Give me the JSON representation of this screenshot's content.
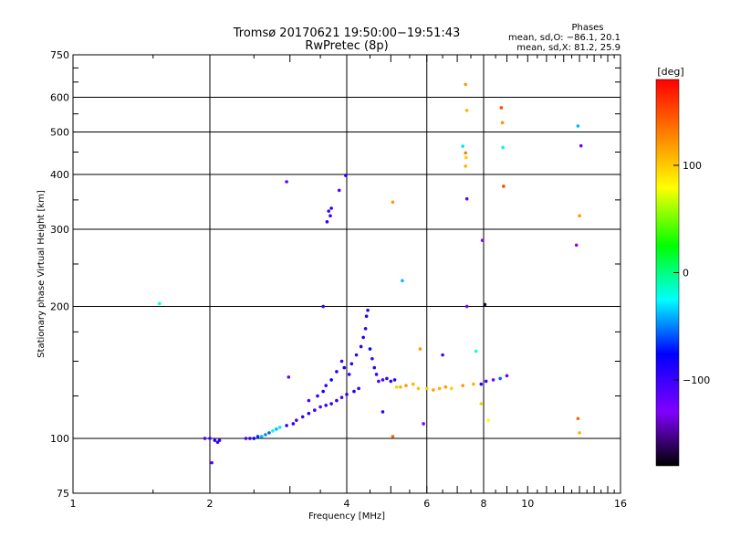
{
  "chart_data": {
    "type": "scatter",
    "title": "Tromsø 20170621 19:50:00−19:51:43",
    "subtitle": "RwPretec (8p)",
    "phases": {
      "heading": "Phases",
      "line1": "mean, sd,O: −86.1, 20.1",
      "line2": "mean, sd,X:  81.2, 25.9"
    },
    "xlabel": "Frequency [MHz]",
    "ylabel": "Stationary phase Virtual Height [km]",
    "x_scale": "log",
    "y_scale": "log",
    "xlim": [
      1,
      16
    ],
    "ylim": [
      75,
      750
    ],
    "x_ticks": [
      1,
      2,
      4,
      6,
      8,
      10,
      16
    ],
    "x_tick_labels": [
      "1",
      "2",
      "4",
      "6",
      "8",
      "10",
      "16"
    ],
    "y_ticks": [
      75,
      100,
      200,
      300,
      400,
      500,
      600,
      750
    ],
    "y_tick_labels": [
      "75",
      "100",
      "200",
      "300",
      "400",
      "500",
      "600",
      "750"
    ],
    "grid_x": [
      2,
      4,
      6,
      8
    ],
    "grid_y": [
      100,
      200,
      300,
      400,
      500,
      600
    ],
    "colorbar": {
      "label": "[deg]",
      "range": [
        -180,
        180
      ],
      "ticks": [
        100,
        0,
        -100
      ],
      "tick_labels": [
        "100",
        "0",
        "−100"
      ]
    },
    "points": [
      [
        1.55,
        203,
        -20
      ],
      [
        2.95,
        385,
        -120
      ],
      [
        3.65,
        330,
        -100
      ],
      [
        3.68,
        322,
        -100
      ],
      [
        3.62,
        312,
        -100
      ],
      [
        3.7,
        335,
        -95
      ],
      [
        3.85,
        368,
        -110
      ],
      [
        3.98,
        398,
        -90
      ],
      [
        2.98,
        138,
        -120
      ],
      [
        3.3,
        122,
        -110
      ],
      [
        3.45,
        125,
        -100
      ],
      [
        3.55,
        128,
        -90
      ],
      [
        3.6,
        132,
        -100
      ],
      [
        3.7,
        136,
        -80
      ],
      [
        3.8,
        142,
        -95
      ],
      [
        3.9,
        150,
        -100
      ],
      [
        3.95,
        145,
        -85
      ],
      [
        4.05,
        140,
        -100
      ],
      [
        4.1,
        148,
        -90
      ],
      [
        4.2,
        155,
        -100
      ],
      [
        4.3,
        162,
        -95
      ],
      [
        4.35,
        170,
        -90
      ],
      [
        4.4,
        178,
        -100
      ],
      [
        4.42,
        190,
        -95
      ],
      [
        4.45,
        196,
        -90
      ],
      [
        4.5,
        160,
        -80
      ],
      [
        4.55,
        152,
        -100
      ],
      [
        4.6,
        145,
        -95
      ],
      [
        4.65,
        140,
        -100
      ],
      [
        4.7,
        135,
        -110
      ],
      [
        4.25,
        130,
        -100
      ],
      [
        4.15,
        128,
        -90
      ],
      [
        4.0,
        126,
        -100
      ],
      [
        3.9,
        124,
        -105
      ],
      [
        3.8,
        122,
        -100
      ],
      [
        3.7,
        120,
        -95
      ],
      [
        3.6,
        119,
        -100
      ],
      [
        3.5,
        118,
        -110
      ],
      [
        3.4,
        116,
        -100
      ],
      [
        3.3,
        114,
        -95
      ],
      [
        3.2,
        112,
        -100
      ],
      [
        3.1,
        110,
        -105
      ],
      [
        3.05,
        108,
        -100
      ],
      [
        2.95,
        107,
        -95
      ],
      [
        2.85,
        106,
        -30
      ],
      [
        2.8,
        105,
        -40
      ],
      [
        2.75,
        104,
        -20
      ],
      [
        2.7,
        103,
        -60
      ],
      [
        2.65,
        102,
        -50
      ],
      [
        2.6,
        101,
        -40
      ],
      [
        2.55,
        101,
        -70
      ],
      [
        2.5,
        100,
        -80
      ],
      [
        2.45,
        100,
        -100
      ],
      [
        2.4,
        100,
        -110
      ],
      [
        2.1,
        99,
        -100
      ],
      [
        2.05,
        99,
        -95
      ],
      [
        2.0,
        100,
        -100
      ],
      [
        1.95,
        100,
        -110
      ],
      [
        2.02,
        88,
        -120
      ],
      [
        2.08,
        98,
        -100
      ],
      [
        4.8,
        136,
        -110
      ],
      [
        4.9,
        137,
        -100
      ],
      [
        5.0,
        135,
        -100
      ],
      [
        5.1,
        136,
        -95
      ],
      [
        5.15,
        131,
        100
      ],
      [
        5.25,
        131,
        110
      ],
      [
        5.4,
        132,
        120
      ],
      [
        5.6,
        133,
        110
      ],
      [
        5.75,
        130,
        105
      ],
      [
        6.0,
        130,
        100
      ],
      [
        6.2,
        129,
        115
      ],
      [
        6.4,
        130,
        110
      ],
      [
        6.6,
        131,
        120
      ],
      [
        6.8,
        130,
        100
      ],
      [
        7.2,
        132,
        120
      ],
      [
        7.6,
        133,
        110
      ],
      [
        7.9,
        133,
        -100
      ],
      [
        8.1,
        135,
        -110
      ],
      [
        8.4,
        136,
        -130
      ],
      [
        8.7,
        137,
        -60
      ],
      [
        9.0,
        139,
        -120
      ],
      [
        5.8,
        160,
        120
      ],
      [
        6.5,
        155,
        -110
      ],
      [
        7.7,
        158,
        -20
      ],
      [
        5.9,
        108,
        -130
      ],
      [
        5.05,
        101,
        140
      ],
      [
        4.8,
        115,
        -100
      ],
      [
        7.2,
        464,
        -30
      ],
      [
        7.3,
        642,
        120
      ],
      [
        7.35,
        560,
        110
      ],
      [
        7.3,
        448,
        130
      ],
      [
        7.32,
        437,
        100
      ],
      [
        7.3,
        418,
        110
      ],
      [
        7.35,
        352,
        -120
      ],
      [
        7.35,
        200,
        -130
      ],
      [
        8.05,
        202,
        -170
      ],
      [
        7.95,
        283,
        -130
      ],
      [
        8.75,
        568,
        150
      ],
      [
        8.8,
        525,
        120
      ],
      [
        8.82,
        461,
        -20
      ],
      [
        8.85,
        376,
        150
      ],
      [
        12.9,
        516,
        -40
      ],
      [
        13.1,
        465,
        -120
      ],
      [
        13.0,
        322,
        120
      ],
      [
        12.8,
        276,
        -130
      ],
      [
        12.9,
        111,
        140
      ],
      [
        13.0,
        103,
        110
      ],
      [
        5.05,
        346,
        120
      ],
      [
        5.3,
        229,
        -40
      ],
      [
        3.55,
        200,
        -100
      ],
      [
        7.9,
        120,
        100
      ],
      [
        8.2,
        110,
        80
      ]
    ]
  }
}
